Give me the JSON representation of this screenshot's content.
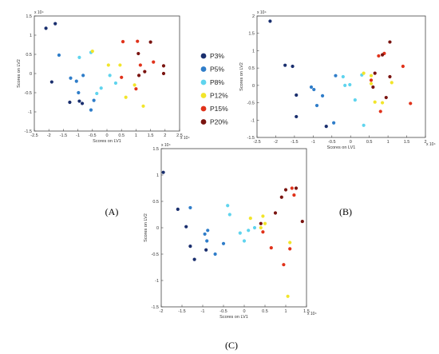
{
  "legend": [
    {
      "label": "P3%",
      "color": "#1a2f6e"
    },
    {
      "label": "P5%",
      "color": "#2f7dc9"
    },
    {
      "label": "P8%",
      "color": "#5fd4ee"
    },
    {
      "label": "P12%",
      "color": "#f2e52a"
    },
    {
      "label": "P15%",
      "color": "#e0321a"
    },
    {
      "label": "P20%",
      "color": "#7a1410"
    }
  ],
  "chart_data": [
    {
      "type": "scatter",
      "caption": "(A)",
      "xlabel": "Scores on LV1",
      "ylabel": "Scores on LV2",
      "x_exponent": "x 10⁴",
      "y_exponent": "x 10⁴",
      "xlim": [
        -2.5,
        2.5
      ],
      "ylim": [
        -1.5,
        1.5
      ],
      "xticks": [
        "-2.5",
        "-2",
        "-1.5",
        "-1",
        "-0.5",
        "0",
        "0.5",
        "1",
        "1.5",
        "2",
        "2.5"
      ],
      "yticks": [
        "-1.5",
        "-1",
        "-0.5",
        "0",
        "0.5",
        "1",
        "1.5"
      ],
      "grid": false,
      "series": [
        {
          "color": "#1a2f6e",
          "points": [
            [
              -2.1,
              1.18
            ],
            [
              -1.78,
              1.3
            ],
            [
              -1.9,
              -0.22
            ],
            [
              -1.28,
              -0.75
            ],
            [
              -0.95,
              -0.72
            ],
            [
              -0.85,
              -0.78
            ]
          ]
        },
        {
          "color": "#2f7dc9",
          "points": [
            [
              -1.65,
              0.48
            ],
            [
              -1.25,
              -0.12
            ],
            [
              -1.05,
              -0.2
            ],
            [
              -0.98,
              -0.5
            ],
            [
              -0.82,
              -0.05
            ],
            [
              -0.55,
              -0.95
            ],
            [
              -0.45,
              -0.7
            ]
          ]
        },
        {
          "color": "#5fd4ee",
          "points": [
            [
              -0.95,
              0.42
            ],
            [
              -0.55,
              0.55
            ],
            [
              -0.35,
              -0.52
            ],
            [
              -0.2,
              -0.38
            ],
            [
              0.1,
              -0.05
            ],
            [
              0.3,
              -0.25
            ]
          ]
        },
        {
          "color": "#f2e52a",
          "points": [
            [
              -0.5,
              0.58
            ],
            [
              0.05,
              0.22
            ],
            [
              0.45,
              0.22
            ],
            [
              0.65,
              -0.62
            ],
            [
              1.25,
              -0.85
            ],
            [
              0.95,
              -0.3
            ]
          ]
        },
        {
          "color": "#e0321a",
          "points": [
            [
              0.55,
              0.83
            ],
            [
              1.05,
              0.84
            ],
            [
              1.15,
              0.22
            ],
            [
              0.5,
              -0.1
            ],
            [
              1.0,
              -0.4
            ],
            [
              1.6,
              0.3
            ]
          ]
        },
        {
          "color": "#7a1410",
          "points": [
            [
              1.5,
              0.82
            ],
            [
              1.08,
              0.52
            ],
            [
              1.95,
              0.2
            ],
            [
              1.95,
              0.0
            ],
            [
              1.3,
              0.05
            ],
            [
              1.1,
              -0.05
            ]
          ]
        }
      ]
    },
    {
      "type": "scatter",
      "caption": "(B)",
      "xlabel": "Scores on LV1",
      "ylabel": "Scores on LV2",
      "x_exponent": "x 10⁴",
      "y_exponent": "x 10⁴",
      "xlim": [
        -2.5,
        2
      ],
      "ylim": [
        -1.5,
        2
      ],
      "xticks": [
        "-2.5",
        "-2",
        "-1.5",
        "-1",
        "-0.5",
        "0",
        "0.5",
        "1",
        "1.5",
        "2"
      ],
      "yticks": [
        "-1.5",
        "-1",
        "-0.5",
        "0",
        "0.5",
        "1",
        "1.5",
        "2"
      ],
      "grid": false,
      "series": [
        {
          "color": "#1a2f6e",
          "points": [
            [
              -2.15,
              1.85
            ],
            [
              -1.75,
              0.58
            ],
            [
              -1.55,
              0.55
            ],
            [
              -1.45,
              -0.28
            ],
            [
              -1.45,
              -0.9
            ],
            [
              -0.65,
              -1.18
            ]
          ]
        },
        {
          "color": "#2f7dc9",
          "points": [
            [
              -1.05,
              -0.05
            ],
            [
              -0.98,
              -0.12
            ],
            [
              -0.9,
              -0.58
            ],
            [
              -0.75,
              -0.3
            ],
            [
              -0.45,
              -1.08
            ],
            [
              -0.4,
              0.28
            ]
          ]
        },
        {
          "color": "#5fd4ee",
          "points": [
            [
              -0.2,
              0.25
            ],
            [
              -0.15,
              0.0
            ],
            [
              -0.02,
              0.02
            ],
            [
              0.12,
              -0.42
            ],
            [
              0.3,
              0.3
            ],
            [
              0.35,
              -1.15
            ]
          ]
        },
        {
          "color": "#f2e52a",
          "points": [
            [
              0.35,
              0.35
            ],
            [
              0.55,
              0.05
            ],
            [
              0.65,
              -0.48
            ],
            [
              0.55,
              0.28
            ],
            [
              0.85,
              -0.5
            ],
            [
              1.1,
              0.08
            ]
          ]
        },
        {
          "color": "#e0321a",
          "points": [
            [
              0.75,
              0.85
            ],
            [
              0.9,
              0.92
            ],
            [
              1.4,
              0.55
            ],
            [
              1.6,
              -0.52
            ],
            [
              0.55,
              0.15
            ],
            [
              0.8,
              -0.75
            ]
          ]
        },
        {
          "color": "#7a1410",
          "points": [
            [
              1.05,
              1.25
            ],
            [
              0.85,
              0.88
            ],
            [
              0.65,
              0.35
            ],
            [
              0.6,
              -0.05
            ],
            [
              0.95,
              -0.35
            ],
            [
              1.05,
              0.25
            ]
          ]
        }
      ]
    },
    {
      "type": "scatter",
      "caption": "(C)",
      "xlabel": "Scores on LV1",
      "ylabel": "Scores on LV2",
      "x_exponent": "x 10⁴",
      "y_exponent": "x 10⁴",
      "xlim": [
        -2,
        1.5
      ],
      "ylim": [
        -1.5,
        1.5
      ],
      "xticks": [
        "-2",
        "-1.5",
        "-1",
        "-0.5",
        "0",
        "0.5",
        "1",
        "1.5"
      ],
      "yticks": [
        "-1.5",
        "-1",
        "-0.5",
        "0",
        "0.5",
        "1",
        "1.5"
      ],
      "grid": false,
      "series": [
        {
          "color": "#1a2f6e",
          "points": [
            [
              -1.95,
              1.05
            ],
            [
              -1.6,
              0.35
            ],
            [
              -1.4,
              0.02
            ],
            [
              -1.3,
              -0.35
            ],
            [
              -1.2,
              -0.6
            ],
            [
              -0.92,
              -0.42
            ]
          ]
        },
        {
          "color": "#2f7dc9",
          "points": [
            [
              -1.3,
              0.38
            ],
            [
              -0.95,
              -0.12
            ],
            [
              -0.9,
              -0.25
            ],
            [
              -0.88,
              -0.05
            ],
            [
              -0.7,
              -0.5
            ],
            [
              -0.5,
              -0.3
            ]
          ]
        },
        {
          "color": "#5fd4ee",
          "points": [
            [
              -0.4,
              0.42
            ],
            [
              -0.35,
              0.25
            ],
            [
              -0.1,
              -0.1
            ],
            [
              0.0,
              -0.25
            ],
            [
              0.25,
              0.0
            ],
            [
              0.1,
              -0.05
            ]
          ]
        },
        {
          "color": "#f2e52a",
          "points": [
            [
              0.15,
              0.18
            ],
            [
              0.45,
              0.22
            ],
            [
              0.5,
              0.08
            ],
            [
              1.1,
              -0.28
            ],
            [
              1.05,
              -1.3
            ],
            [
              0.4,
              0.0
            ]
          ]
        },
        {
          "color": "#e0321a",
          "points": [
            [
              0.65,
              -0.38
            ],
            [
              0.95,
              -0.7
            ],
            [
              1.1,
              -0.4
            ],
            [
              1.2,
              0.62
            ],
            [
              0.45,
              -0.08
            ],
            [
              1.15,
              0.75
            ]
          ]
        },
        {
          "color": "#7a1410",
          "points": [
            [
              0.9,
              0.58
            ],
            [
              1.0,
              0.72
            ],
            [
              1.25,
              0.75
            ],
            [
              1.4,
              0.12
            ],
            [
              0.75,
              0.28
            ],
            [
              0.4,
              0.08
            ]
          ]
        }
      ]
    }
  ]
}
